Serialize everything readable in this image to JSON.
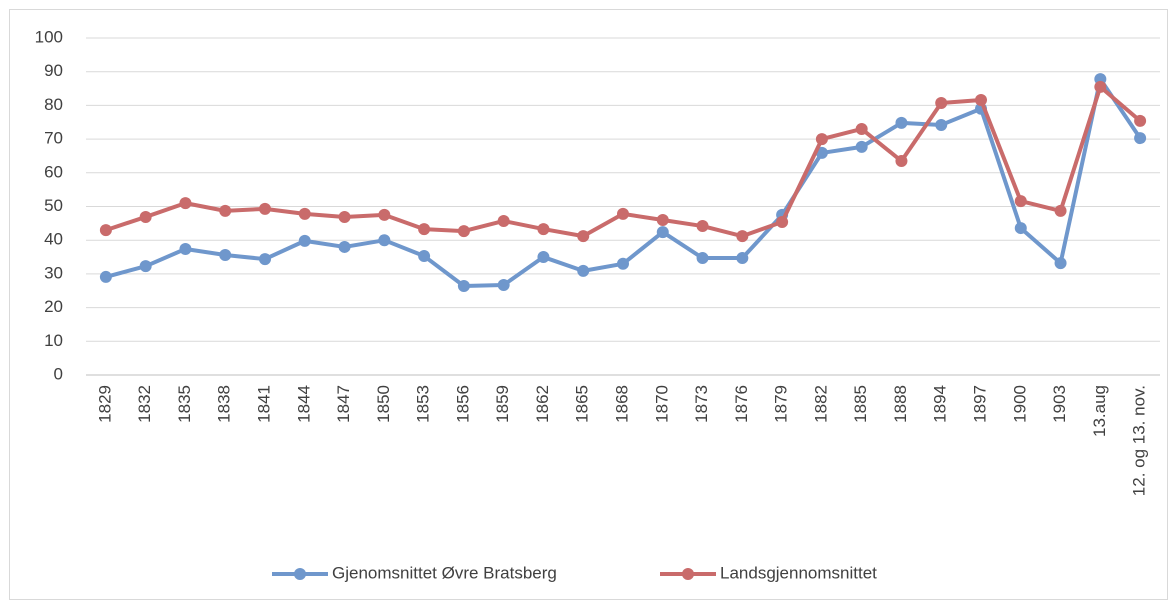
{
  "chart_data": {
    "type": "line",
    "categories": [
      "1829",
      "1832",
      "1835",
      "1838",
      "1841",
      "1844",
      "1847",
      "1850",
      "1853",
      "1856",
      "1859",
      "1862",
      "1865",
      "1868",
      "1870",
      "1873",
      "1876",
      "1879",
      "1882",
      "1885",
      "1888",
      "1894",
      "1897",
      "1900",
      "1903",
      "13.aug",
      "12. og 13. nov."
    ],
    "series": [
      {
        "name": "Gjenomsnittet Øvre Bratsberg",
        "color": "#6f97cc",
        "values": [
          29.1,
          32.3,
          37.4,
          35.6,
          34.4,
          39.8,
          38,
          40,
          35.3,
          26.4,
          26.7,
          35,
          30.9,
          33,
          42.4,
          34.7,
          34.7,
          47.5,
          65.9,
          67.7,
          74.8,
          74.2,
          79,
          43.6,
          33.2,
          87.8,
          70.3
        ]
      },
      {
        "name": "Landsgjennomsnittet",
        "color": "#c96b6b",
        "values": [
          43,
          46.9,
          51,
          48.7,
          49.3,
          47.8,
          46.9,
          47.5,
          43.3,
          42.7,
          45.7,
          43.3,
          41.2,
          47.8,
          46,
          44.2,
          41.2,
          45.4,
          70,
          73,
          63.5,
          80.7,
          81.6,
          51.6,
          48.7,
          85.5,
          75.4
        ]
      }
    ],
    "ylim": [
      0,
      100
    ],
    "yticks": [
      0,
      10,
      20,
      30,
      40,
      50,
      60,
      70,
      80,
      90,
      100
    ],
    "grid": true,
    "legend": "bottom"
  }
}
